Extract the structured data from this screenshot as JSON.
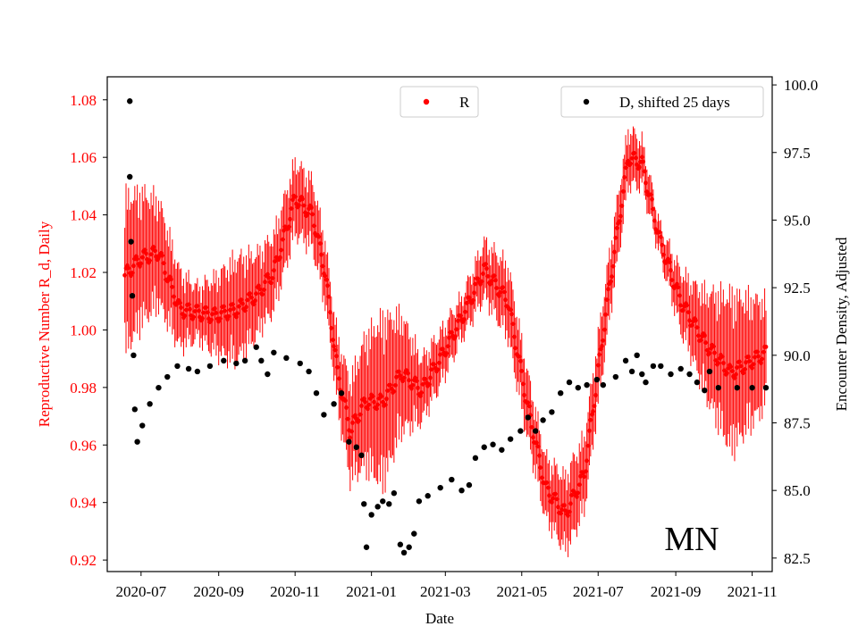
{
  "chart_data": {
    "type": "scatter",
    "state_label": "MN",
    "xlabel": "Date",
    "ylabel_left": "Reproductive Number R_d, Daily",
    "ylabel_right": "Encounter Density, Adjusted",
    "x_start": "2020-06-18",
    "x_end": "2021-11-12",
    "xlim": [
      "2020-06-04",
      "2021-11-17"
    ],
    "ylim_left": [
      0.916,
      1.088
    ],
    "ylim_right": [
      82.0,
      100.3
    ],
    "left_axis_color": "#ff0000",
    "r_color": "#ff0000",
    "d_color": "#000000",
    "x_ticks": [
      "2020-07",
      "2020-09",
      "2020-11",
      "2021-01",
      "2021-03",
      "2021-05",
      "2021-07",
      "2021-09",
      "2021-11"
    ],
    "y_ticks_left": [
      "0.92",
      "0.94",
      "0.96",
      "0.98",
      "1.00",
      "1.02",
      "1.04",
      "1.06",
      "1.08"
    ],
    "y_ticks_right": [
      "82.5",
      "85.0",
      "87.5",
      "90.0",
      "92.5",
      "95.0",
      "97.5",
      "100.0"
    ],
    "legend_r": "R",
    "legend_d": "D, shifted 25 days",
    "r_anchors": [
      [
        "2020-06-18",
        1.019
      ],
      [
        "2020-07-01",
        1.025
      ],
      [
        "2020-07-15",
        1.027
      ],
      [
        "2020-08-01",
        1.007
      ],
      [
        "2020-08-15",
        1.006
      ],
      [
        "2020-08-28",
        1.005
      ],
      [
        "2020-09-15",
        1.007
      ],
      [
        "2020-10-01",
        1.012
      ],
      [
        "2020-10-15",
        1.02
      ],
      [
        "2020-11-01",
        1.046
      ],
      [
        "2020-11-15",
        1.04
      ],
      [
        "2020-11-25",
        1.02
      ],
      [
        "2020-12-05",
        0.985
      ],
      [
        "2020-12-15",
        0.965
      ],
      [
        "2020-12-27",
        0.975
      ],
      [
        "2021-01-10",
        0.975
      ],
      [
        "2021-01-25",
        0.985
      ],
      [
        "2021-02-10",
        0.979
      ],
      [
        "2021-02-25",
        0.99
      ],
      [
        "2021-03-15",
        1.005
      ],
      [
        "2021-04-01",
        1.021
      ],
      [
        "2021-04-20",
        1.01
      ],
      [
        "2021-05-05",
        0.975
      ],
      [
        "2021-05-20",
        0.945
      ],
      [
        "2021-06-05",
        0.936
      ],
      [
        "2021-06-20",
        0.95
      ],
      [
        "2021-07-10",
        1.015
      ],
      [
        "2021-07-25",
        1.06
      ],
      [
        "2021-08-05",
        1.058
      ],
      [
        "2021-08-20",
        1.03
      ],
      [
        "2021-09-05",
        1.01
      ],
      [
        "2021-09-25",
        0.995
      ],
      [
        "2021-10-15",
        0.985
      ],
      [
        "2021-11-12",
        0.992
      ]
    ],
    "r_band_anchors": [
      [
        "2020-06-18",
        0.03
      ],
      [
        "2020-07-10",
        0.022
      ],
      [
        "2020-08-15",
        0.01
      ],
      [
        "2020-09-15",
        0.02
      ],
      [
        "2020-10-05",
        0.015
      ],
      [
        "2020-11-01",
        0.014
      ],
      [
        "2020-12-01",
        0.012
      ],
      [
        "2021-01-10",
        0.032
      ],
      [
        "2021-02-10",
        0.012
      ],
      [
        "2021-03-15",
        0.008
      ],
      [
        "2021-04-20",
        0.014
      ],
      [
        "2021-05-20",
        0.012
      ],
      [
        "2021-06-10",
        0.015
      ],
      [
        "2021-07-20",
        0.012
      ],
      [
        "2021-08-20",
        0.006
      ],
      [
        "2021-09-15",
        0.015
      ],
      [
        "2021-10-15",
        0.03
      ],
      [
        "2021-11-12",
        0.02
      ]
    ],
    "d_points": [
      [
        "2020-06-22",
        99.4
      ],
      [
        "2020-06-22",
        96.6
      ],
      [
        "2020-06-23",
        94.2
      ],
      [
        "2020-06-24",
        92.2
      ],
      [
        "2020-06-25",
        90.0
      ],
      [
        "2020-06-26",
        88.0
      ],
      [
        "2020-06-28",
        86.8
      ],
      [
        "2020-07-02",
        87.4
      ],
      [
        "2020-07-08",
        88.2
      ],
      [
        "2020-07-15",
        88.8
      ],
      [
        "2020-07-22",
        89.2
      ],
      [
        "2020-07-30",
        89.6
      ],
      [
        "2020-08-08",
        89.5
      ],
      [
        "2020-08-15",
        89.4
      ],
      [
        "2020-08-25",
        89.6
      ],
      [
        "2020-09-05",
        89.8
      ],
      [
        "2020-09-15",
        89.7
      ],
      [
        "2020-09-22",
        89.8
      ],
      [
        "2020-10-01",
        90.3
      ],
      [
        "2020-10-05",
        89.8
      ],
      [
        "2020-10-10",
        89.3
      ],
      [
        "2020-10-15",
        90.1
      ],
      [
        "2020-10-25",
        89.9
      ],
      [
        "2020-11-05",
        89.7
      ],
      [
        "2020-11-12",
        89.4
      ],
      [
        "2020-11-18",
        88.6
      ],
      [
        "2020-11-24",
        87.8
      ],
      [
        "2020-12-02",
        88.2
      ],
      [
        "2020-12-08",
        88.6
      ],
      [
        "2020-12-14",
        86.8
      ],
      [
        "2020-12-20",
        86.6
      ],
      [
        "2020-12-24",
        86.3
      ],
      [
        "2020-12-26",
        84.5
      ],
      [
        "2020-12-28",
        82.9
      ],
      [
        "2021-01-01",
        84.1
      ],
      [
        "2021-01-06",
        84.4
      ],
      [
        "2021-01-10",
        84.6
      ],
      [
        "2021-01-15",
        84.5
      ],
      [
        "2021-01-19",
        84.9
      ],
      [
        "2021-01-24",
        83.0
      ],
      [
        "2021-01-27",
        82.7
      ],
      [
        "2021-01-31",
        82.9
      ],
      [
        "2021-02-04",
        83.4
      ],
      [
        "2021-02-08",
        84.6
      ],
      [
        "2021-02-15",
        84.8
      ],
      [
        "2021-02-25",
        85.1
      ],
      [
        "2021-03-06",
        85.4
      ],
      [
        "2021-03-14",
        85.0
      ],
      [
        "2021-03-20",
        85.2
      ],
      [
        "2021-03-25",
        86.2
      ],
      [
        "2021-04-01",
        86.6
      ],
      [
        "2021-04-08",
        86.7
      ],
      [
        "2021-04-15",
        86.5
      ],
      [
        "2021-04-22",
        86.9
      ],
      [
        "2021-04-30",
        87.2
      ],
      [
        "2021-05-06",
        87.7
      ],
      [
        "2021-05-12",
        87.2
      ],
      [
        "2021-05-18",
        87.6
      ],
      [
        "2021-05-25",
        87.9
      ],
      [
        "2021-06-01",
        88.6
      ],
      [
        "2021-06-08",
        89.0
      ],
      [
        "2021-06-15",
        88.8
      ],
      [
        "2021-06-22",
        88.9
      ],
      [
        "2021-06-30",
        89.1
      ],
      [
        "2021-07-05",
        88.9
      ],
      [
        "2021-07-15",
        89.2
      ],
      [
        "2021-07-23",
        89.8
      ],
      [
        "2021-07-28",
        89.4
      ],
      [
        "2021-08-01",
        90.0
      ],
      [
        "2021-08-05",
        89.3
      ],
      [
        "2021-08-08",
        89.0
      ],
      [
        "2021-08-14",
        89.6
      ],
      [
        "2021-08-20",
        89.6
      ],
      [
        "2021-08-28",
        89.3
      ],
      [
        "2021-09-05",
        89.5
      ],
      [
        "2021-09-12",
        89.3
      ],
      [
        "2021-09-18",
        89.0
      ],
      [
        "2021-09-24",
        88.7
      ],
      [
        "2021-09-28",
        89.4
      ],
      [
        "2021-10-05",
        88.8
      ],
      [
        "2021-10-20",
        88.8
      ],
      [
        "2021-11-01",
        88.8
      ],
      [
        "2021-11-12",
        88.8
      ]
    ]
  }
}
